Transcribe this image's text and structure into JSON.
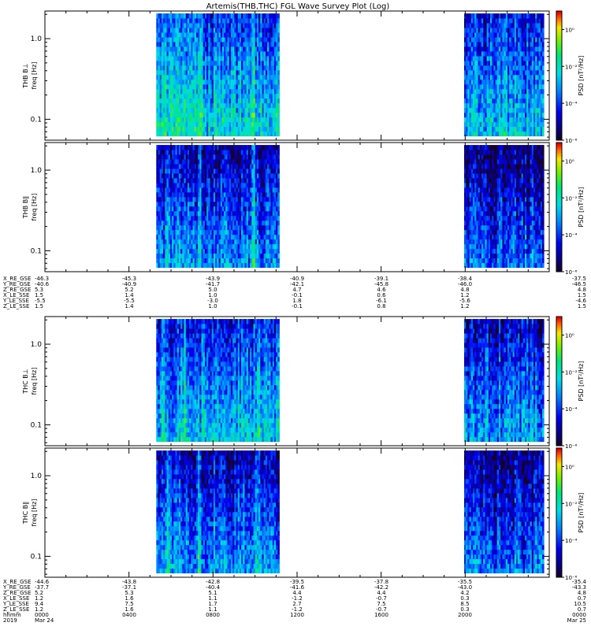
{
  "title": "Artemis(THB,THC) FGL Wave Survey Plot (Log)",
  "colors": {
    "background": "#ffffff",
    "gap": "#ffffff",
    "frame": "#000000"
  },
  "chart_data": [
    {
      "type": "heatmap",
      "probe": "THB",
      "component": "B⊥",
      "ylabel_name": "THB B⊥",
      "ylabel_unit": "freq [Hz]",
      "yscale": "log",
      "ylim": [
        0.055,
        2.2
      ],
      "y_ticks": [
        {
          "value": 1.0,
          "label": "1.0"
        },
        {
          "value": 0.1,
          "label": "0.1"
        }
      ],
      "xlim_hours": [
        0,
        24
      ],
      "data_segments_hours": [
        [
          5.3,
          11.15
        ],
        [
          19.95,
          23.7
        ]
      ],
      "colorbar": {
        "label": "PSD [nT²/Hz]",
        "scale": "log",
        "range_exp": [
          -6,
          1
        ],
        "ticks": [
          {
            "exp": 0,
            "label": "10⁰"
          },
          {
            "exp": -2,
            "label": "10⁻²"
          },
          {
            "exp": -4,
            "label": "10⁻⁴"
          },
          {
            "exp": -6,
            "label": "10⁻⁶"
          }
        ]
      },
      "level_mean": 0.55,
      "bright_bands_hours": [
        5.7,
        6.4,
        7.4,
        9.9
      ]
    },
    {
      "type": "heatmap",
      "probe": "THB",
      "component": "B∥",
      "ylabel_name": "THB B∥",
      "ylabel_unit": "freq [Hz]",
      "yscale": "log",
      "ylim": [
        0.055,
        2.2
      ],
      "y_ticks": [
        {
          "value": 1.0,
          "label": "1.0"
        },
        {
          "value": 0.1,
          "label": "0.1"
        }
      ],
      "xlim_hours": [
        0,
        24
      ],
      "data_segments_hours": [
        [
          5.3,
          11.15
        ],
        [
          19.95,
          23.7
        ]
      ],
      "colorbar": {
        "label": "PSD [nT²/Hz]",
        "scale": "log",
        "range_exp": [
          -6,
          1
        ],
        "ticks": [
          {
            "exp": 0,
            "label": "10⁰"
          },
          {
            "exp": -2,
            "label": "10⁻²"
          },
          {
            "exp": -4,
            "label": "10⁻⁴"
          },
          {
            "exp": -6,
            "label": "10⁻⁶"
          }
        ]
      },
      "level_mean": 0.4,
      "bright_bands_hours": [
        5.8,
        7.3,
        9.9
      ]
    },
    {
      "type": "heatmap",
      "probe": "THC",
      "component": "B⊥",
      "ylabel_name": "THC B⊥",
      "ylabel_unit": "freq [Hz]",
      "yscale": "log",
      "ylim": [
        0.055,
        2.2
      ],
      "y_ticks": [
        {
          "value": 1.0,
          "label": "1.0"
        },
        {
          "value": 0.1,
          "label": "0.1"
        }
      ],
      "xlim_hours": [
        0,
        24
      ],
      "data_segments_hours": [
        [
          5.3,
          11.15
        ],
        [
          19.95,
          23.7
        ]
      ],
      "colorbar": {
        "label": "PSD [nT²/Hz]",
        "scale": "log",
        "range_exp": [
          -6,
          1
        ],
        "ticks": [
          {
            "exp": 0,
            "label": "10⁰"
          },
          {
            "exp": -2,
            "label": "10⁻²"
          },
          {
            "exp": -4,
            "label": "10⁻⁴"
          },
          {
            "exp": -6,
            "label": "10⁻⁶"
          }
        ]
      },
      "level_mean": 0.5,
      "bright_bands_hours": [
        5.6,
        6.6,
        7.5,
        10.1
      ]
    },
    {
      "type": "heatmap",
      "probe": "THC",
      "component": "B∥",
      "ylabel_name": "THC B∥",
      "ylabel_unit": "freq [Hz]",
      "yscale": "log",
      "ylim": [
        0.055,
        2.2
      ],
      "y_ticks": [
        {
          "value": 1.0,
          "label": "1.0"
        },
        {
          "value": 0.1,
          "label": "0.1"
        }
      ],
      "xlim_hours": [
        0,
        24
      ],
      "data_segments_hours": [
        [
          5.3,
          11.15
        ],
        [
          19.95,
          23.7
        ]
      ],
      "colorbar": {
        "label": "PSD [nT²/Hz]",
        "scale": "log",
        "range_exp": [
          -6,
          1
        ],
        "ticks": [
          {
            "exp": 0,
            "label": "10⁰"
          },
          {
            "exp": -2,
            "label": "10⁻²"
          },
          {
            "exp": -4,
            "label": "10⁻⁴"
          },
          {
            "exp": -6,
            "label": "10⁻⁶"
          }
        ]
      },
      "level_mean": 0.42,
      "bright_bands_hours": [
        5.8,
        7.3,
        10.1
      ]
    }
  ],
  "ephemeris_tables": [
    {
      "rows": [
        {
          "label": "X_RE_GSE",
          "values": [
            "-46.3",
            "-45.3",
            "-43.9",
            "-40.9",
            "-39.1",
            "-38.4",
            "-37.5"
          ]
        },
        {
          "label": "Y_RE_GSE",
          "values": [
            "-40.6",
            "-40.9",
            "-41.7",
            "-42.1",
            "-45.8",
            "-46.0",
            "-46.5"
          ]
        },
        {
          "label": "Z_RE_GSE",
          "values": [
            "5.3",
            "5.2",
            "5.0",
            "4.7",
            "4.6",
            "4.8",
            "4.8"
          ]
        },
        {
          "label": "X_LE_SSE",
          "values": [
            "1.5",
            "1.4",
            "1.0",
            "-0.1",
            "0.6",
            "1.2",
            "1.5"
          ]
        },
        {
          "label": "Y_LE_SSE",
          "values": [
            "-5.5",
            "-5.5",
            "-3.0",
            "1.8",
            "-6.1",
            "-5.6",
            "-4.6"
          ]
        },
        {
          "label": "Z_LE_SSE",
          "values": [
            "1.5",
            "1.4",
            "1.0",
            "-0.1",
            "0.8",
            "1.2",
            "1.5"
          ]
        }
      ]
    },
    {
      "rows": [
        {
          "label": "X_RE_GSE",
          "values": [
            "-44.6",
            "-43.8",
            "-42.8",
            "-39.5",
            "-37.8",
            "-35.5",
            "-35.4"
          ]
        },
        {
          "label": "Y_RE_GSE",
          "values": [
            "-37.7",
            "-37.1",
            "-40.4",
            "-41.6",
            "-42.2",
            "-43.0",
            "-43.3"
          ]
        },
        {
          "label": "Z_RE_GSE",
          "values": [
            "5.2",
            "5.3",
            "5.1",
            "4.4",
            "4.4",
            "4.2",
            "4.8"
          ]
        },
        {
          "label": "X_LE_SSE",
          "values": [
            "1.2",
            "1.6",
            "1.1",
            "-1.2",
            "-0.7",
            "0.3",
            "0.7"
          ]
        },
        {
          "label": "Y_LE_SSE",
          "values": [
            "9.4",
            "7.5",
            "1.7",
            "2.7",
            "7.5",
            "8.5",
            "10.5"
          ]
        },
        {
          "label": "Z_LE_SSE",
          "values": [
            "1.2",
            "1.6",
            "1.1",
            "-1.2",
            "-0.7",
            "0.3",
            "0.7"
          ]
        }
      ],
      "time_rows": [
        {
          "label": "hhmm",
          "values": [
            "0000",
            "0400",
            "0800",
            "1200",
            "1600",
            "2000",
            "0000"
          ]
        },
        {
          "label": "2019",
          "values": [
            "Mar 24",
            "",
            "",
            "",
            "",
            "",
            "Mar 25"
          ]
        }
      ]
    }
  ]
}
